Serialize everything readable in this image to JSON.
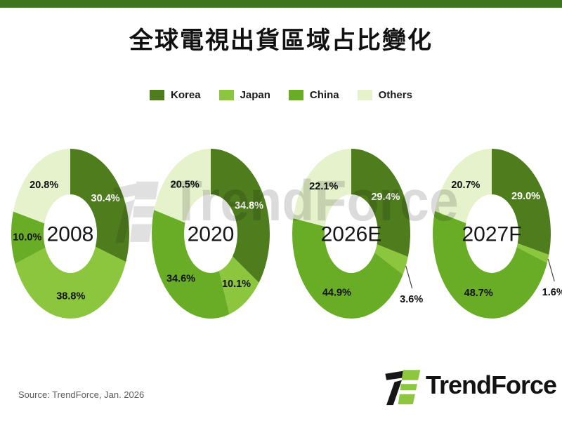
{
  "page": {
    "title": "全球電視出貨區域占比變化",
    "source_note": "Source: TrendForce, Jan. 2026",
    "watermark": "TrendForce",
    "logo_text": "TrendForce"
  },
  "colors": {
    "top_bar": "#3E741D",
    "korea": "#4F7D1E",
    "japan": "#8CC63F",
    "china": "#69AD27",
    "others": "#E5F2CB",
    "label_on_dark": "#FFFFFF",
    "label_on_light": "#111111",
    "logo_green": "#8DC63F",
    "logo_black": "#161616",
    "watermark_gray": "#B5B5B5"
  },
  "chart_data": {
    "type": "donut-grid",
    "title": "全球電視出貨區域占比變化",
    "unit": "%",
    "legend": [
      "Korea",
      "Japan",
      "China",
      "Others"
    ],
    "legend_position": "top",
    "series_keys": [
      "korea",
      "japan",
      "china",
      "others"
    ],
    "label_text_colors": [
      "#FFFFFF",
      "#111111",
      "#111111",
      "#111111"
    ],
    "charts": [
      {
        "center_label": "2008",
        "values": [
          30.4,
          38.8,
          10.0,
          20.8
        ]
      },
      {
        "center_label": "2020",
        "values": [
          34.8,
          10.1,
          34.6,
          20.5
        ]
      },
      {
        "center_label": "2026E",
        "values": [
          29.4,
          3.6,
          44.9,
          22.1
        ],
        "outside_label_indices": [
          1
        ]
      },
      {
        "center_label": "2027F",
        "values": [
          29.0,
          1.6,
          48.7,
          20.7
        ],
        "outside_label_indices": [
          1
        ]
      }
    ]
  }
}
